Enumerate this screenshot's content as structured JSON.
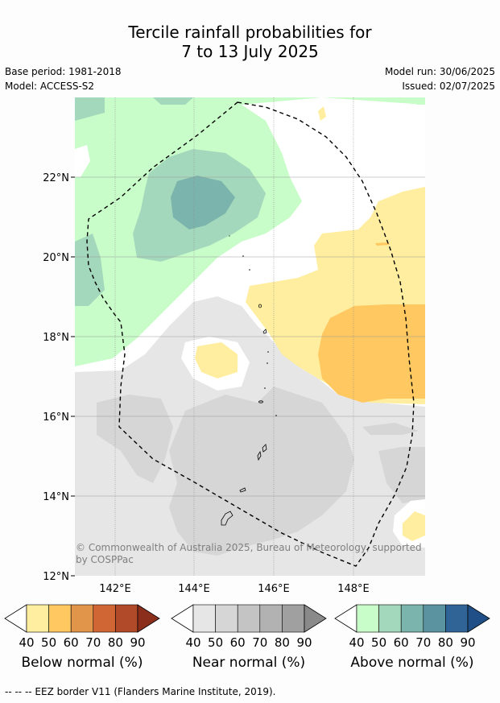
{
  "title_line1": "Tercile rainfall probabilities for",
  "title_line2": "7 to 13 July 2025",
  "base_period": "Base period: 1981-2018",
  "model": "Model: ACCESS-S2",
  "model_run": "Model run: 30/06/2025",
  "issued": "Issued: 02/07/2025",
  "map": {
    "lat_labels": [
      "22°N",
      "20°N",
      "18°N",
      "16°N",
      "14°N",
      "12°N"
    ],
    "lon_labels": [
      "142°E",
      "144°E",
      "146°E",
      "148°E"
    ],
    "copyright_line1": "© Commonwealth of Australia 2025, Bureau of Meteorology, supported",
    "copyright_line2": "by COSPPac"
  },
  "colorbars": [
    {
      "label": "Below normal (%)",
      "ticks": [
        "40",
        "50",
        "60",
        "70",
        "80",
        "90"
      ],
      "colors": [
        "#ffffff",
        "#ffeea0",
        "#ffc860",
        "#e0954a",
        "#cf6633",
        "#b04a28",
        "#8b2f1c"
      ]
    },
    {
      "label": "Near normal (%)",
      "ticks": [
        "40",
        "50",
        "60",
        "70",
        "80",
        "90"
      ],
      "colors": [
        "#ffffff",
        "#e6e6e6",
        "#d6d6d6",
        "#c4c4c4",
        "#b2b2b2",
        "#a0a0a0",
        "#8a8a8a"
      ]
    },
    {
      "label": "Above normal (%)",
      "ticks": [
        "40",
        "50",
        "60",
        "70",
        "80",
        "90"
      ],
      "colors": [
        "#ffffff",
        "#c8fcc8",
        "#a4d8bc",
        "#7ab4ac",
        "#5b94a0",
        "#316496",
        "#1f4f86"
      ]
    }
  ],
  "footer": "--  --  -- EEZ border V11 (Flanders Marine Institute, 2019)."
}
